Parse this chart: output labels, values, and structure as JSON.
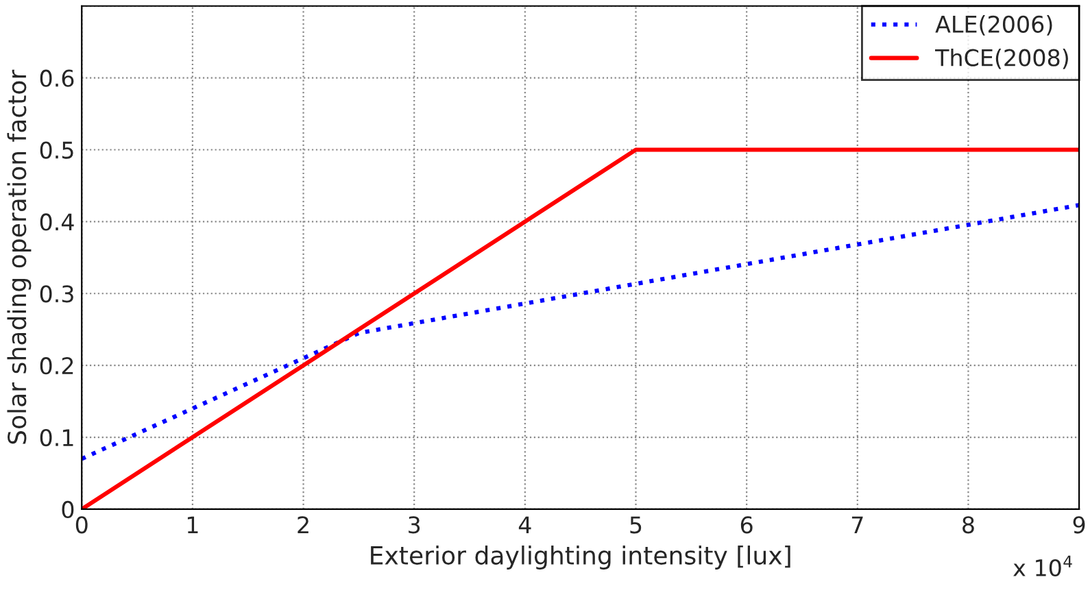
{
  "chart_data": {
    "type": "line",
    "xlabel": "Exterior daylighting intensity [lux]",
    "ylabel": "Solar shading operation factor",
    "xlim": [
      0,
      9
    ],
    "xticks": [
      0,
      1,
      2,
      3,
      4,
      5,
      6,
      7,
      8,
      9
    ],
    "ylim": [
      0,
      0.7
    ],
    "yticks": [
      0,
      0.1,
      0.2,
      0.3,
      0.4,
      0.5,
      0.6,
      {
        "value": 0.7,
        "label": null
      }
    ],
    "grid": true,
    "legend": "top right",
    "annotations": [
      "x 10$^{4}$"
    ],
    "series": [
      {
        "name": "ALE(2006)",
        "color": "#0000ff",
        "line_style": "dotted",
        "x": [
          0,
          2.5,
          9
        ],
        "values": [
          0.07,
          0.245,
          0.423
        ]
      },
      {
        "name": "ThCE(2008)",
        "color": "#ff0000",
        "line_style": "solid",
        "x": [
          0,
          5,
          9
        ],
        "values": [
          0,
          0.5,
          0.5
        ]
      }
    ]
  }
}
